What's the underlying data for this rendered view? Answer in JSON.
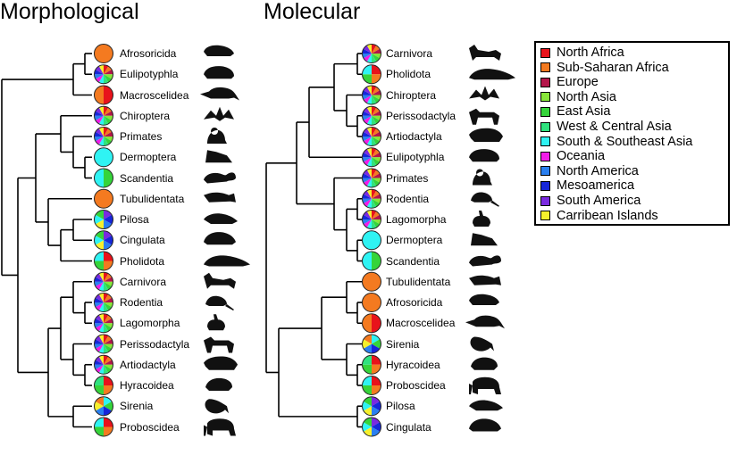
{
  "titles": {
    "left": "Morphological",
    "right": "Molecular"
  },
  "regions": [
    {
      "name": "North Africa",
      "color": "#e8131b"
    },
    {
      "name": "Sub-Saharan Africa",
      "color": "#f47a20"
    },
    {
      "name": "Europe",
      "color": "#b4154a"
    },
    {
      "name": "North Asia",
      "color": "#88e63a"
    },
    {
      "name": "East Asia",
      "color": "#35d43a"
    },
    {
      "name": "West & Central Asia",
      "color": "#2fe27e"
    },
    {
      "name": "South & Southeast Asia",
      "color": "#2ff3f3"
    },
    {
      "name": "Oceania",
      "color": "#f21ce8"
    },
    {
      "name": "North America",
      "color": "#2a7ff0"
    },
    {
      "name": "Mesoamerica",
      "color": "#1726d9"
    },
    {
      "name": "South America",
      "color": "#7a2ae0"
    },
    {
      "name": "Carribean Islands",
      "color": "#f6f02c"
    }
  ],
  "morphological_tips": [
    {
      "label": "Afrosoricida",
      "pie": "sub-saharan-only",
      "silhouette": "tenrec"
    },
    {
      "label": "Eulipotyphla",
      "pie": "many-regions",
      "silhouette": "hedgehog"
    },
    {
      "label": "Macroscelidea",
      "pie": "north-and-sub-saharan-africa",
      "silhouette": "elephant-shrew"
    },
    {
      "label": "Chiroptera",
      "pie": "many-regions",
      "silhouette": "bat"
    },
    {
      "label": "Primates",
      "pie": "many-regions",
      "silhouette": "monkey"
    },
    {
      "label": "Dermoptera",
      "pie": "south-southeast-asia-only",
      "silhouette": "colugo"
    },
    {
      "label": "Scandentia",
      "pie": "asia",
      "silhouette": "treeshrew"
    },
    {
      "label": "Tubulidentata",
      "pie": "sub-saharan-only",
      "silhouette": "aardvark"
    },
    {
      "label": "Pilosa",
      "pie": "americas",
      "silhouette": "anteater"
    },
    {
      "label": "Cingulata",
      "pie": "americas",
      "silhouette": "armadillo"
    },
    {
      "label": "Pholidota",
      "pie": "africa-and-asia",
      "silhouette": "pangolin"
    },
    {
      "label": "Carnivora",
      "pie": "many-regions",
      "silhouette": "fox"
    },
    {
      "label": "Rodentia",
      "pie": "many-regions",
      "silhouette": "rat"
    },
    {
      "label": "Lagomorpha",
      "pie": "many-regions",
      "silhouette": "rabbit"
    },
    {
      "label": "Perissodactyla",
      "pie": "many-regions",
      "silhouette": "horse"
    },
    {
      "label": "Artiodactyla",
      "pie": "many-regions",
      "silhouette": "boar"
    },
    {
      "label": "Hyracoidea",
      "pie": "africa-and-west-asia",
      "silhouette": "hyrax"
    },
    {
      "label": "Sirenia",
      "pie": "tropical-coasts",
      "silhouette": "manatee"
    },
    {
      "label": "Proboscidea",
      "pie": "africa-and-asia",
      "silhouette": "elephant"
    }
  ],
  "molecular_tips": [
    {
      "label": "Carnivora",
      "pie": "many-regions",
      "silhouette": "fox"
    },
    {
      "label": "Pholidota",
      "pie": "africa-and-asia",
      "silhouette": "pangolin"
    },
    {
      "label": "Chiroptera",
      "pie": "many-regions",
      "silhouette": "bat"
    },
    {
      "label": "Perissodactyla",
      "pie": "many-regions",
      "silhouette": "horse"
    },
    {
      "label": "Artiodactyla",
      "pie": "many-regions",
      "silhouette": "boar"
    },
    {
      "label": "Eulipotyphla",
      "pie": "many-regions",
      "silhouette": "hedgehog"
    },
    {
      "label": "Primates",
      "pie": "many-regions",
      "silhouette": "monkey"
    },
    {
      "label": "Rodentia",
      "pie": "many-regions",
      "silhouette": "rat"
    },
    {
      "label": "Lagomorpha",
      "pie": "many-regions",
      "silhouette": "rabbit"
    },
    {
      "label": "Dermoptera",
      "pie": "south-southeast-asia-only",
      "silhouette": "colugo"
    },
    {
      "label": "Scandentia",
      "pie": "asia",
      "silhouette": "treeshrew"
    },
    {
      "label": "Tubulidentata",
      "pie": "sub-saharan-only",
      "silhouette": "aardvark"
    },
    {
      "label": "Afrosoricida",
      "pie": "sub-saharan-only",
      "silhouette": "tenrec"
    },
    {
      "label": "Macroscelidea",
      "pie": "north-and-sub-saharan-africa",
      "silhouette": "elephant-shrew"
    },
    {
      "label": "Sirenia",
      "pie": "tropical-coasts",
      "silhouette": "manatee"
    },
    {
      "label": "Hyracoidea",
      "pie": "africa-and-west-asia",
      "silhouette": "hyrax"
    },
    {
      "label": "Proboscidea",
      "pie": "africa-and-asia",
      "silhouette": "elephant"
    },
    {
      "label": "Pilosa",
      "pie": "americas",
      "silhouette": "anteater"
    },
    {
      "label": "Cingulata",
      "pie": "americas",
      "silhouette": "armadillo"
    }
  ],
  "pie_regions": {
    "sub-saharan-only": [
      "Sub-Saharan Africa"
    ],
    "south-southeast-asia-only": [
      "South & Southeast Asia"
    ],
    "north-and-sub-saharan-africa": [
      "North Africa",
      "Sub-Saharan Africa"
    ],
    "asia": [
      "East Asia",
      "South & Southeast Asia"
    ],
    "africa-and-asia": [
      "North Africa",
      "Sub-Saharan Africa",
      "East Asia",
      "South & Southeast Asia"
    ],
    "africa-and-west-asia": [
      "North Africa",
      "Sub-Saharan Africa",
      "East Asia",
      "West & Central Asia"
    ],
    "americas": [
      "South America",
      "Mesoamerica",
      "North America",
      "Carribean Islands",
      "South & Southeast Asia",
      "East Asia"
    ],
    "tropical-coasts": [
      "South & Southeast Asia",
      "East Asia",
      "Mesoamerica",
      "North America",
      "Carribean Islands",
      "Sub-Saharan Africa"
    ],
    "many-regions": [
      "North Africa",
      "Sub-Saharan Africa",
      "Europe",
      "North Asia",
      "East Asia",
      "West & Central Asia",
      "South & Southeast Asia",
      "Oceania",
      "North America",
      "Mesoamerica",
      "South America",
      "Carribean Islands"
    ]
  }
}
